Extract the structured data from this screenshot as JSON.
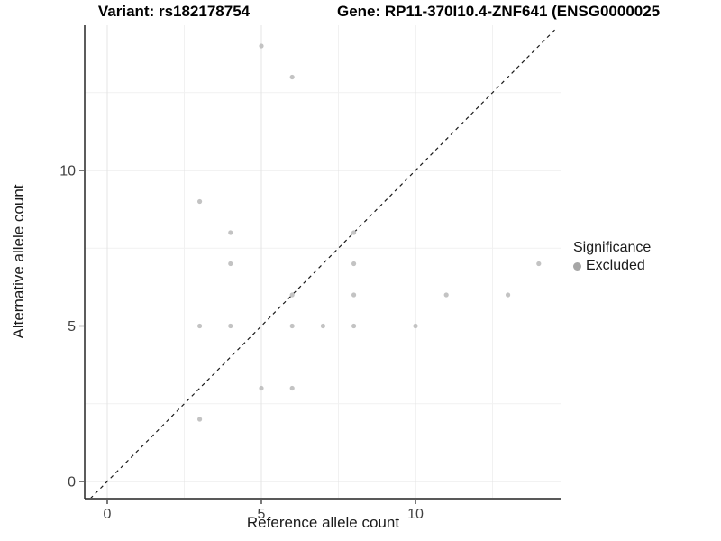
{
  "chart_data": {
    "type": "scatter",
    "title_variant": "Variant: rs182178754",
    "title_gene": "Gene: RP11-370I10.4-ZNF641 (ENSG0000025",
    "xlabel": "Reference allele count",
    "ylabel": "Alternative allele count",
    "x_ticks": [
      0,
      5,
      10
    ],
    "y_ticks": [
      0,
      5,
      10
    ],
    "x_minor_gridlines": [
      2.5,
      7.5,
      12.5
    ],
    "y_minor_gridlines": [
      2.5,
      7.5,
      12.5
    ],
    "xlim": [
      -0.73,
      14.74
    ],
    "ylim": [
      -0.55,
      14.6
    ],
    "grid": "major+minor",
    "legend_position": "right",
    "identity_line": {
      "style": "dashed",
      "slope": 1,
      "intercept": 0
    },
    "series": [
      {
        "name": "Excluded",
        "color": "#c3c3c3",
        "points": [
          [
            3,
            2
          ],
          [
            3,
            5
          ],
          [
            3,
            9
          ],
          [
            4,
            5
          ],
          [
            4,
            7
          ],
          [
            4,
            8
          ],
          [
            5,
            3
          ],
          [
            5,
            14
          ],
          [
            6,
            3
          ],
          [
            6,
            5
          ],
          [
            6,
            6
          ],
          [
            6,
            13
          ],
          [
            7,
            5
          ],
          [
            8,
            5
          ],
          [
            8,
            6
          ],
          [
            8,
            7
          ],
          [
            8,
            8
          ],
          [
            10,
            5
          ],
          [
            11,
            6
          ],
          [
            13,
            6
          ],
          [
            14,
            7
          ]
        ]
      }
    ],
    "legend": {
      "title": "Significance",
      "items": [
        {
          "label": "Excluded",
          "color": "#a6a6a6",
          "marker": "circle"
        }
      ]
    },
    "colors": {
      "point": "#c3c3c3",
      "grid_major": "#e4e4e4",
      "grid_minor": "#f1f1f1",
      "axis_line_x": "#595959",
      "axis_line_y": "#262626",
      "tick": "#333333",
      "identity_line": "#1a1a1a"
    }
  }
}
